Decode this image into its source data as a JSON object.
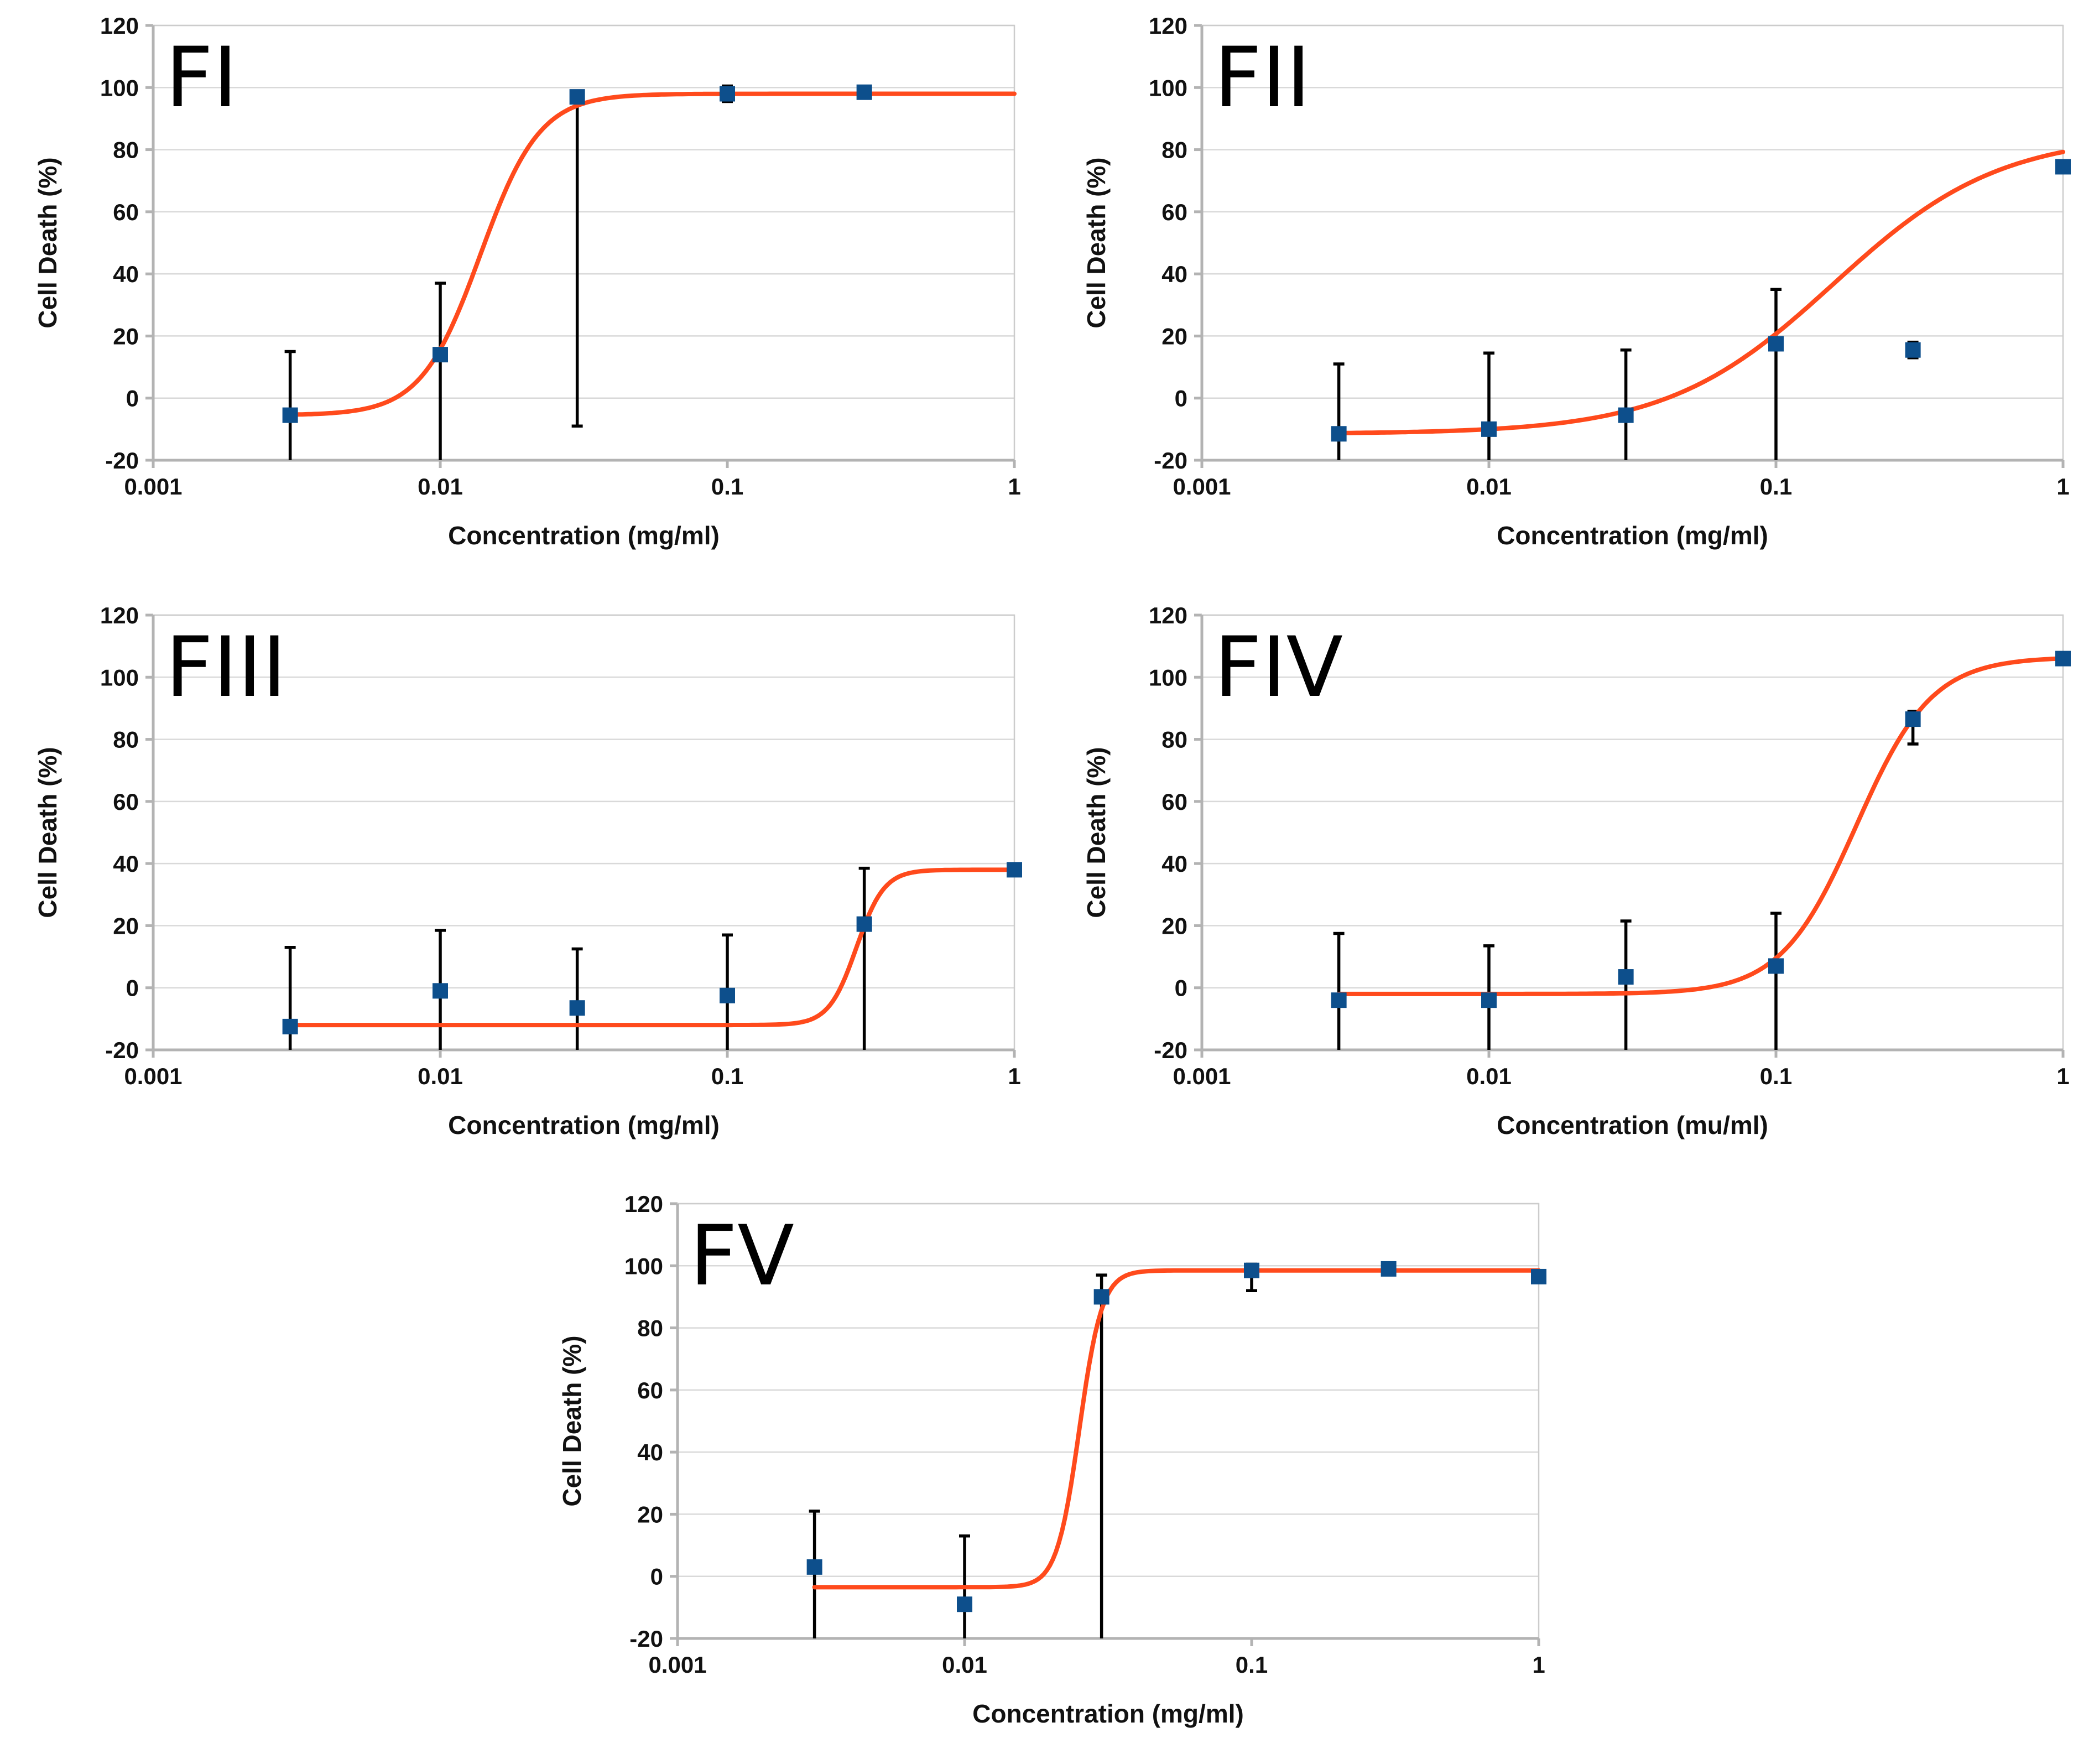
{
  "colors": {
    "fit": "#ff4a1c",
    "marker": "#0d4f8c",
    "error": "#000000",
    "grid": "#d9d9d9",
    "axis": "#b3b3b3"
  },
  "chart_data": [
    {
      "type": "scatter",
      "panel": "FI",
      "title": "",
      "xlabel": "Concentration (mg/ml)",
      "ylabel": "Cell Death (%)",
      "xscale": "log",
      "xlim": [
        0.001,
        1
      ],
      "ylim": [
        -20,
        120
      ],
      "xticks": [
        "0.001",
        "0.01",
        "0.1",
        "1"
      ],
      "yticks": [
        "-20",
        "0",
        "20",
        "40",
        "60",
        "80",
        "100",
        "120"
      ],
      "grid": true,
      "points": [
        {
          "x": 0.003,
          "y": -5.5,
          "err_low": -20,
          "err_high": 15
        },
        {
          "x": 0.01,
          "y": 14,
          "err_low": -20,
          "err_high": 37
        },
        {
          "x": 0.03,
          "y": 97,
          "err_low": -9,
          "err_high": 97
        },
        {
          "x": 0.1,
          "y": 98,
          "err_low": 95.5,
          "err_high": 100.5
        },
        {
          "x": 0.3,
          "y": 98.5,
          "err_low": 97,
          "err_high": 100
        }
      ],
      "fit": {
        "bottom": -5.5,
        "top": 98,
        "log_ec50": -1.86,
        "hill": 4.2,
        "x_from": 0.003,
        "x_to": 1
      }
    },
    {
      "type": "scatter",
      "panel": "FII",
      "title": "",
      "xlabel": "Concentration (mg/ml)",
      "ylabel": "Cell Death (%)",
      "xscale": "log",
      "xlim": [
        0.001,
        1
      ],
      "ylim": [
        -20,
        120
      ],
      "xticks": [
        "0.001",
        "0.01",
        "0.1",
        "1"
      ],
      "yticks": [
        "-20",
        "0",
        "20",
        "40",
        "60",
        "80",
        "100",
        "120"
      ],
      "grid": true,
      "points": [
        {
          "x": 0.003,
          "y": -11.5,
          "err_low": -20,
          "err_high": 11
        },
        {
          "x": 0.01,
          "y": -10,
          "err_low": -20,
          "err_high": 14.5
        },
        {
          "x": 0.03,
          "y": -5.5,
          "err_low": -20,
          "err_high": 15.5
        },
        {
          "x": 0.1,
          "y": 17.5,
          "err_low": -20,
          "err_high": 35
        },
        {
          "x": 0.3,
          "y": 15.5,
          "err_low": 13,
          "err_high": 18
        },
        {
          "x": 1,
          "y": 74.5
        }
      ],
      "fit": {
        "bottom": -11.5,
        "top": 85,
        "log_ec50": -0.8,
        "hill": 1.5,
        "x_from": 0.003,
        "x_to": 1
      }
    },
    {
      "type": "scatter",
      "panel": "FIII",
      "title": "",
      "xlabel": "Concentration (mg/ml)",
      "ylabel": "Cell Death (%)",
      "xscale": "log",
      "xlim": [
        0.001,
        1
      ],
      "ylim": [
        -20,
        120
      ],
      "xticks": [
        "0.001",
        "0.01",
        "0.1",
        "1"
      ],
      "yticks": [
        "-20",
        "0",
        "20",
        "40",
        "60",
        "80",
        "100",
        "120"
      ],
      "grid": true,
      "points": [
        {
          "x": 0.003,
          "y": -12.5,
          "err_low": -20,
          "err_high": 13
        },
        {
          "x": 0.01,
          "y": -1,
          "err_low": -20,
          "err_high": 18.5
        },
        {
          "x": 0.03,
          "y": -6.5,
          "err_low": -20,
          "err_high": 12.5
        },
        {
          "x": 0.1,
          "y": -2.5,
          "err_low": -20,
          "err_high": 17
        },
        {
          "x": 0.3,
          "y": 20.5,
          "err_low": -20,
          "err_high": 38.5
        },
        {
          "x": 1,
          "y": 38
        }
      ],
      "fit": {
        "bottom": -12,
        "top": 38,
        "log_ec50": -0.55,
        "hill": 9,
        "x_from": 0.003,
        "x_to": 1
      }
    },
    {
      "type": "scatter",
      "panel": "FIV",
      "title": "",
      "xlabel": "Concentration (mu/ml)",
      "ylabel": "Cell Death (%)",
      "xscale": "log",
      "xlim": [
        0.001,
        1
      ],
      "ylim": [
        -20,
        120
      ],
      "xticks": [
        "0.001",
        "0.01",
        "0.1",
        "1"
      ],
      "yticks": [
        "-20",
        "0",
        "20",
        "40",
        "60",
        "80",
        "100",
        "120"
      ],
      "grid": true,
      "points": [
        {
          "x": 0.003,
          "y": -4,
          "err_low": -20,
          "err_high": 17.5
        },
        {
          "x": 0.01,
          "y": -4,
          "err_low": -20,
          "err_high": 13.5
        },
        {
          "x": 0.03,
          "y": 3.5,
          "err_low": -20,
          "err_high": 21.5
        },
        {
          "x": 0.1,
          "y": 7,
          "err_low": -20,
          "err_high": 24
        },
        {
          "x": 0.3,
          "y": 86.5,
          "err_low": 78.5,
          "err_high": 89
        },
        {
          "x": 1,
          "y": 106
        }
      ],
      "fit": {
        "bottom": -2,
        "top": 106.5,
        "log_ec50": -0.72,
        "hill": 3.3,
        "x_from": 0.003,
        "x_to": 1
      }
    },
    {
      "type": "scatter",
      "panel": "FV",
      "title": "",
      "xlabel": "Concentration (mg/ml)",
      "ylabel": "Cell Death (%)",
      "xscale": "log",
      "xlim": [
        0.001,
        1
      ],
      "ylim": [
        -20,
        120
      ],
      "xticks": [
        "0.001",
        "0.01",
        "0.1",
        "1"
      ],
      "yticks": [
        "-20",
        "0",
        "20",
        "40",
        "60",
        "80",
        "100",
        "120"
      ],
      "grid": true,
      "points": [
        {
          "x": 0.003,
          "y": 3,
          "err_low": -20,
          "err_high": 21
        },
        {
          "x": 0.01,
          "y": -9,
          "err_low": -20,
          "err_high": 13
        },
        {
          "x": 0.03,
          "y": 90,
          "err_low": -20,
          "err_high": 97
        },
        {
          "x": 0.1,
          "y": 98.5,
          "err_low": 92,
          "err_high": 100.5
        },
        {
          "x": 0.3,
          "y": 99,
          "err_low": 97.5,
          "err_high": 100
        },
        {
          "x": 1,
          "y": 96.5
        }
      ],
      "fit": {
        "bottom": -3.5,
        "top": 98.5,
        "log_ec50": -1.6,
        "hill": 11,
        "x_from": 0.003,
        "x_to": 1
      }
    }
  ]
}
